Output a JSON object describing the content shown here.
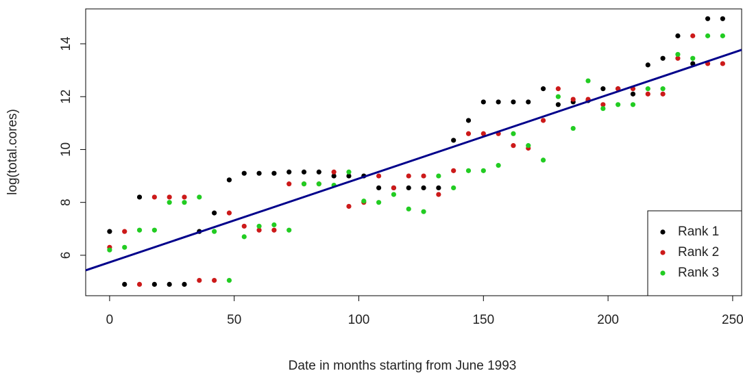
{
  "chart_data": {
    "type": "scatter",
    "xlabel": "Date in months starting from June 1993",
    "ylabel": "log(total.cores)",
    "xlim": [
      -9.6,
      253.6
    ],
    "ylim": [
      4.47,
      15.32
    ],
    "xticks": [
      0,
      50,
      100,
      150,
      200,
      250
    ],
    "yticks": [
      6,
      8,
      10,
      12,
      14
    ],
    "legend": "bottom-right",
    "x": [
      0,
      6,
      12,
      18,
      24,
      30,
      36,
      42,
      48,
      54,
      60,
      66,
      72,
      78,
      84,
      90,
      96,
      102,
      108,
      114,
      120,
      126,
      132,
      138,
      144,
      150,
      156,
      162,
      168,
      174,
      180,
      186,
      192,
      198,
      204,
      210,
      216,
      222,
      228,
      234,
      240,
      246
    ],
    "series": [
      {
        "name": "Rank 1",
        "color": "#000000",
        "values": [
          6.9,
          4.9,
          8.2,
          4.9,
          4.9,
          4.9,
          6.9,
          7.6,
          8.85,
          9.1,
          9.1,
          9.1,
          9.15,
          9.15,
          9.15,
          9.0,
          9.0,
          9.0,
          8.55,
          8.55,
          8.55,
          8.55,
          8.55,
          10.35,
          11.1,
          11.8,
          11.8,
          11.8,
          11.8,
          12.3,
          11.7,
          11.8,
          11.85,
          12.3,
          12.3,
          12.1,
          13.2,
          13.45,
          14.3,
          13.25,
          14.95,
          14.95
        ]
      },
      {
        "name": "Rank 2",
        "color": "#cc1a1a",
        "values": [
          6.3,
          6.9,
          4.9,
          8.2,
          8.2,
          8.2,
          5.05,
          5.05,
          7.6,
          7.1,
          6.95,
          6.95,
          8.7,
          8.7,
          8.7,
          9.15,
          7.85,
          8.0,
          9.0,
          8.55,
          9.0,
          9.0,
          8.3,
          9.2,
          10.6,
          10.6,
          10.6,
          10.15,
          10.05,
          11.1,
          12.3,
          11.9,
          11.9,
          11.7,
          12.3,
          12.3,
          12.1,
          12.1,
          13.45,
          14.3,
          13.25,
          13.25
        ]
      },
      {
        "name": "Rank 3",
        "color": "#22cc22",
        "values": [
          6.2,
          6.3,
          6.95,
          6.95,
          8.0,
          8.0,
          8.2,
          6.9,
          5.05,
          6.7,
          7.1,
          7.15,
          6.95,
          8.7,
          8.7,
          8.65,
          9.15,
          8.05,
          8.0,
          8.3,
          7.75,
          7.65,
          9.0,
          8.55,
          9.2,
          9.2,
          9.4,
          10.6,
          10.15,
          9.6,
          12.0,
          10.8,
          12.6,
          11.55,
          11.7,
          11.7,
          12.3,
          12.3,
          13.6,
          13.45,
          14.3,
          14.3
        ]
      }
    ],
    "fit_line": {
      "color": "#00008b",
      "x": [
        -9.6,
        253.6
      ],
      "y": [
        5.43,
        13.77
      ]
    }
  }
}
